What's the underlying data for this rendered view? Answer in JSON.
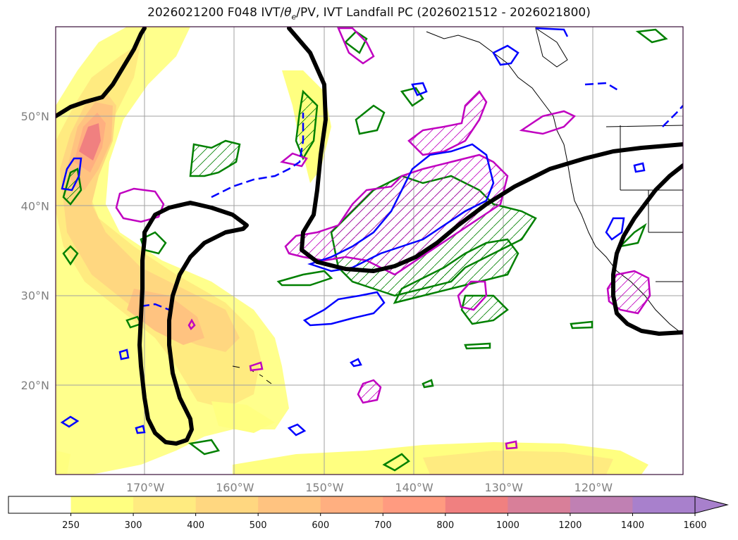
{
  "title": {
    "main": "2026021200 F048 IVT/",
    "theta": "θ",
    "theta_sub": "e",
    "rest": "/PV, IVT Landfall PC (2026021512 - 2026021800)"
  },
  "axes": {
    "lat_labels": [
      "50°N",
      "40°N",
      "30°N",
      "20°N"
    ],
    "lon_labels": [
      "170°W",
      "160°W",
      "150°W",
      "140°W",
      "130°W",
      "120°W"
    ],
    "lat_values": [
      50,
      40,
      30,
      20
    ],
    "lon_values": [
      -170,
      -160,
      -150,
      -140,
      -130,
      -120
    ],
    "lon_range": [
      -180,
      -110
    ],
    "lat_range": [
      10,
      60
    ],
    "grid": true
  },
  "colorbar": {
    "labels": [
      "250",
      "300",
      "400",
      "500",
      "600",
      "700",
      "800",
      "1000",
      "1200",
      "1400",
      "1600"
    ],
    "colors": [
      "#ffffff",
      "#ffff80",
      "#ffeb80",
      "#ffd780",
      "#ffc380",
      "#ffaf80",
      "#ff9b80",
      "#f08080",
      "#d87f99",
      "#c080b3",
      "#a880cc"
    ],
    "extend": "max"
  },
  "legend_colors": {
    "ivt_fill": "#ffd27a",
    "pc_contour": "#000000",
    "theta_contour": "#0000ff",
    "pv_contour": "#008000",
    "magenta_contour": "#c000c0"
  }
}
